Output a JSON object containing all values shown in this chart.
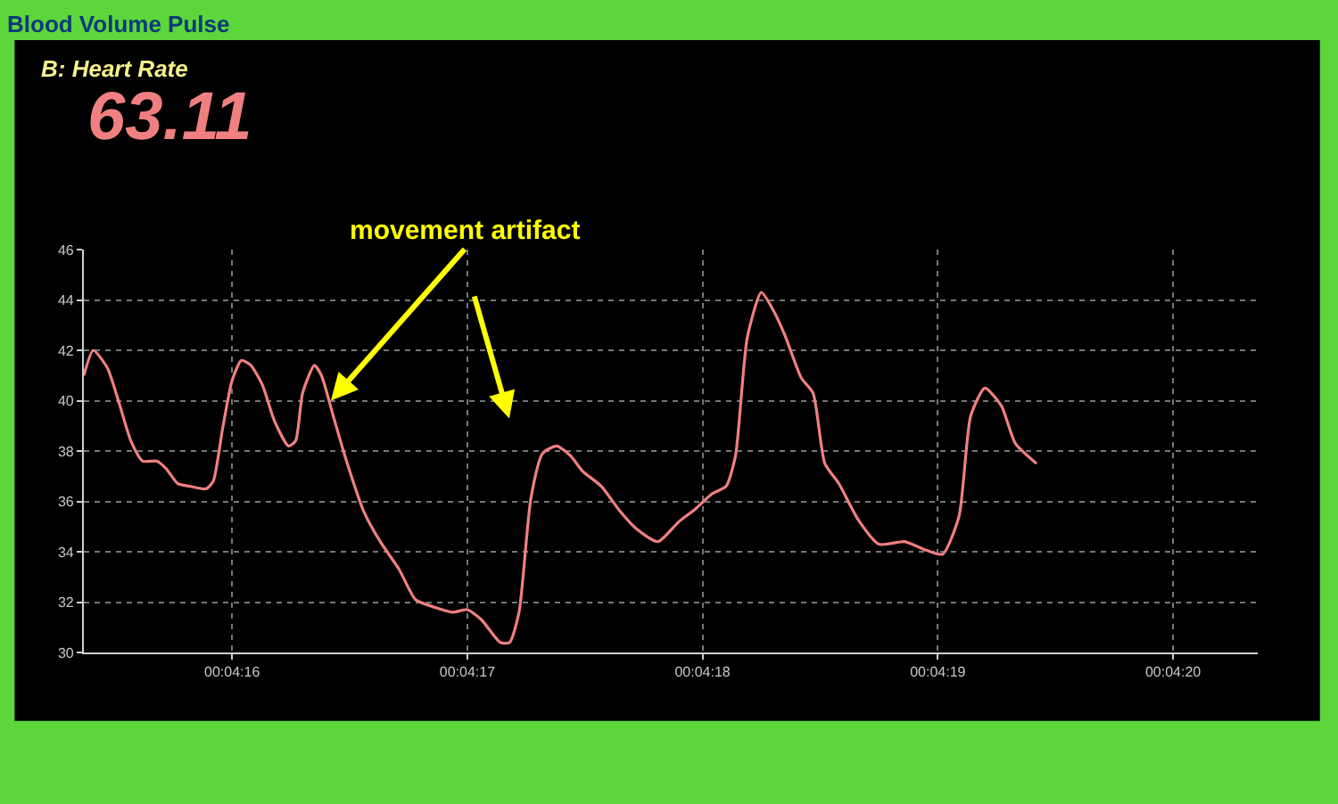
{
  "chart_data": {
    "type": "line",
    "title": "Blood Volume Pulse",
    "subtitle": "B: Heart Rate",
    "annotations": [
      "63.11",
      {
        "text": "movement artifact",
        "x": 256.42,
        "y": 40.0
      }
    ],
    "x": [
      255.37,
      255.41,
      255.47,
      255.52,
      255.57,
      255.62,
      255.68,
      255.72,
      255.77,
      255.82,
      255.89,
      255.92,
      255.96,
      256.0,
      256.04,
      256.08,
      256.13,
      256.18,
      256.24,
      256.27,
      256.3,
      256.35,
      256.38,
      256.43,
      256.48,
      256.56,
      256.63,
      256.71,
      256.78,
      256.86,
      256.94,
      257.0,
      257.06,
      257.14,
      257.18,
      257.22,
      257.27,
      257.32,
      257.38,
      257.44,
      257.49,
      257.57,
      257.65,
      257.72,
      257.81,
      257.9,
      257.97,
      258.04,
      258.1,
      258.14,
      258.19,
      258.25,
      258.3,
      258.35,
      258.42,
      258.47,
      258.52,
      258.58,
      258.66,
      258.75,
      258.86,
      258.94,
      259.02,
      259.09,
      259.14,
      259.2,
      259.27,
      259.33,
      259.42
    ],
    "series": [
      {
        "color": "#f08080",
        "values": [
          41.0,
          42.0,
          41.3,
          39.9,
          38.4,
          37.6,
          37.6,
          37.3,
          36.7,
          36.6,
          36.5,
          36.8,
          38.9,
          40.8,
          41.6,
          41.4,
          40.6,
          39.2,
          38.2,
          38.4,
          40.3,
          41.4,
          41.0,
          39.4,
          37.8,
          35.6,
          34.4,
          33.3,
          32.1,
          31.8,
          31.6,
          31.7,
          31.3,
          30.4,
          30.4,
          31.6,
          36.1,
          37.9,
          38.2,
          37.8,
          37.2,
          36.6,
          35.6,
          34.9,
          34.4,
          35.2,
          35.7,
          36.3,
          36.6,
          37.8,
          42.5,
          44.3,
          43.6,
          42.6,
          40.9,
          40.3,
          37.5,
          36.7,
          35.3,
          34.3,
          34.4,
          34.1,
          33.9,
          35.4,
          39.4,
          40.5,
          39.8,
          38.3,
          37.5
        ]
      }
    ],
    "xlim": [
      255.37,
      260.36
    ],
    "xticks": [
      {
        "value": 256,
        "label": "00:04:16"
      },
      {
        "value": 257,
        "label": "00:04:17"
      },
      {
        "value": 258,
        "label": "00:04:18"
      },
      {
        "value": 259,
        "label": "00:04:19"
      },
      {
        "value": 260,
        "label": "00:04:20"
      }
    ],
    "ylim": [
      30,
      46
    ],
    "yticks": [
      30,
      32,
      34,
      36,
      38,
      40,
      42,
      44,
      46
    ],
    "grid": true,
    "marker": "none",
    "line_style": "solid"
  }
}
